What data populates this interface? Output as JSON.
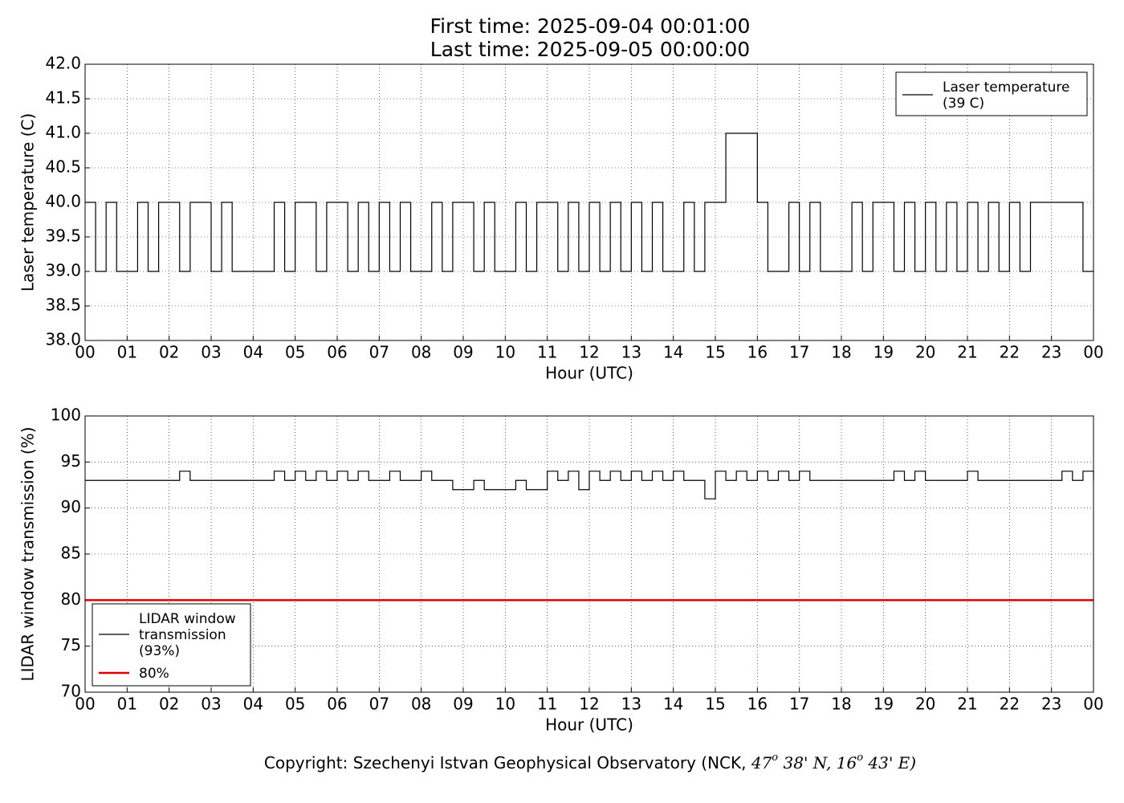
{
  "title": [
    "First time: 2025-09-04 00:01:00",
    "Last time: 2025-09-05 00:00:00"
  ],
  "chart_data": [
    {
      "type": "line",
      "drawstyle": "steps",
      "xlabel": "Hour (UTC)",
      "ylabel": "Laser temperature (C)",
      "grid": true,
      "legend": "upper right",
      "xlim": [
        0,
        24
      ],
      "xticks": [
        {
          "value": 0,
          "label": "00"
        },
        {
          "value": 1,
          "label": "01"
        },
        {
          "value": 2,
          "label": "02"
        },
        {
          "value": 3,
          "label": "03"
        },
        {
          "value": 4,
          "label": "04"
        },
        {
          "value": 5,
          "label": "05"
        },
        {
          "value": 6,
          "label": "06"
        },
        {
          "value": 7,
          "label": "07"
        },
        {
          "value": 8,
          "label": "08"
        },
        {
          "value": 9,
          "label": "09"
        },
        {
          "value": 10,
          "label": "10"
        },
        {
          "value": 11,
          "label": "11"
        },
        {
          "value": 12,
          "label": "12"
        },
        {
          "value": 13,
          "label": "13"
        },
        {
          "value": 14,
          "label": "14"
        },
        {
          "value": 15,
          "label": "15"
        },
        {
          "value": 16,
          "label": "16"
        },
        {
          "value": 17,
          "label": "17"
        },
        {
          "value": 18,
          "label": "18"
        },
        {
          "value": 19,
          "label": "19"
        },
        {
          "value": 20,
          "label": "20"
        },
        {
          "value": 21,
          "label": "21"
        },
        {
          "value": 22,
          "label": "22"
        },
        {
          "value": 23,
          "label": "23"
        },
        {
          "value": 24,
          "label": "00"
        }
      ],
      "ylim": [
        38,
        42
      ],
      "yticks": [
        {
          "value": 38,
          "label": "38.0"
        },
        {
          "value": 38.5,
          "label": "38.5"
        },
        {
          "value": 39,
          "label": "39.0"
        },
        {
          "value": 39.5,
          "label": "39.5"
        },
        {
          "value": 40,
          "label": "40.0"
        },
        {
          "value": 40.5,
          "label": "40.5"
        },
        {
          "value": 41,
          "label": "41.0"
        },
        {
          "value": 41.5,
          "label": "41.5"
        },
        {
          "value": 42,
          "label": "42.0"
        }
      ],
      "x": [
        0,
        0.25,
        0.5,
        0.75,
        1,
        1.25,
        1.5,
        1.75,
        2,
        2.25,
        2.5,
        2.75,
        3,
        3.25,
        3.5,
        3.75,
        4,
        4.25,
        4.5,
        4.75,
        5,
        5.25,
        5.5,
        5.75,
        6,
        6.25,
        6.5,
        6.75,
        7,
        7.25,
        7.5,
        7.75,
        8,
        8.25,
        8.5,
        8.75,
        9,
        9.25,
        9.5,
        9.75,
        10,
        10.25,
        10.5,
        10.75,
        11,
        11.25,
        11.5,
        11.75,
        12,
        12.25,
        12.5,
        12.75,
        13,
        13.25,
        13.5,
        13.75,
        14,
        14.25,
        14.5,
        14.75,
        15,
        15.25,
        15.5,
        15.75,
        16,
        16.25,
        16.5,
        16.75,
        17,
        17.25,
        17.5,
        17.75,
        18,
        18.25,
        18.5,
        18.75,
        19,
        19.25,
        19.5,
        19.75,
        20,
        20.25,
        20.5,
        20.75,
        21,
        21.25,
        21.5,
        21.75,
        22,
        22.25,
        22.5,
        22.75,
        23,
        23.25,
        23.5,
        23.75,
        24
      ],
      "series": [
        {
          "name": "Laser temperature\n(39 C)",
          "color": "#000000",
          "values": [
            40,
            39,
            40,
            39,
            39,
            40,
            39,
            40,
            40,
            39,
            40,
            40,
            39,
            40,
            39,
            39,
            39,
            39,
            40,
            39,
            40,
            40,
            39,
            40,
            40,
            39,
            40,
            39,
            40,
            39,
            40,
            39,
            39,
            40,
            39,
            40,
            40,
            39,
            40,
            39,
            39,
            40,
            39,
            40,
            40,
            39,
            40,
            39,
            40,
            39,
            40,
            39,
            40,
            39,
            40,
            39,
            39,
            40,
            39,
            40,
            40,
            41,
            41,
            41,
            40,
            39,
            39,
            40,
            39,
            40,
            39,
            39,
            39,
            40,
            39,
            40,
            40,
            39,
            40,
            39,
            40,
            39,
            40,
            39,
            40,
            39,
            40,
            39,
            40,
            39,
            40,
            40,
            40,
            40,
            40,
            39,
            39
          ]
        }
      ]
    },
    {
      "type": "line",
      "drawstyle": "steps",
      "xlabel": "Hour (UTC)",
      "ylabel": "LIDAR window transmission (%)",
      "grid": true,
      "legend": "lower left",
      "xlim": [
        0,
        24
      ],
      "xticks": [
        {
          "value": 0,
          "label": "00"
        },
        {
          "value": 1,
          "label": "01"
        },
        {
          "value": 2,
          "label": "02"
        },
        {
          "value": 3,
          "label": "03"
        },
        {
          "value": 4,
          "label": "04"
        },
        {
          "value": 5,
          "label": "05"
        },
        {
          "value": 6,
          "label": "06"
        },
        {
          "value": 7,
          "label": "07"
        },
        {
          "value": 8,
          "label": "08"
        },
        {
          "value": 9,
          "label": "09"
        },
        {
          "value": 10,
          "label": "10"
        },
        {
          "value": 11,
          "label": "11"
        },
        {
          "value": 12,
          "label": "12"
        },
        {
          "value": 13,
          "label": "13"
        },
        {
          "value": 14,
          "label": "14"
        },
        {
          "value": 15,
          "label": "15"
        },
        {
          "value": 16,
          "label": "16"
        },
        {
          "value": 17,
          "label": "17"
        },
        {
          "value": 18,
          "label": "18"
        },
        {
          "value": 19,
          "label": "19"
        },
        {
          "value": 20,
          "label": "20"
        },
        {
          "value": 21,
          "label": "21"
        },
        {
          "value": 22,
          "label": "22"
        },
        {
          "value": 23,
          "label": "23"
        },
        {
          "value": 24,
          "label": "00"
        }
      ],
      "ylim": [
        70,
        100
      ],
      "yticks": [
        70,
        75,
        80,
        85,
        90,
        95,
        100
      ],
      "x": [
        0,
        0.25,
        0.5,
        0.75,
        1,
        1.25,
        1.5,
        1.75,
        2,
        2.25,
        2.5,
        2.75,
        3,
        3.25,
        3.5,
        3.75,
        4,
        4.25,
        4.5,
        4.75,
        5,
        5.25,
        5.5,
        5.75,
        6,
        6.25,
        6.5,
        6.75,
        7,
        7.25,
        7.5,
        7.75,
        8,
        8.25,
        8.5,
        8.75,
        9,
        9.25,
        9.5,
        9.75,
        10,
        10.25,
        10.5,
        10.75,
        11,
        11.25,
        11.5,
        11.75,
        12,
        12.25,
        12.5,
        12.75,
        13,
        13.25,
        13.5,
        13.75,
        14,
        14.25,
        14.5,
        14.75,
        15,
        15.25,
        15.5,
        15.75,
        16,
        16.25,
        16.5,
        16.75,
        17,
        17.25,
        17.5,
        17.75,
        18,
        18.25,
        18.5,
        18.75,
        19,
        19.25,
        19.5,
        19.75,
        20,
        20.25,
        20.5,
        20.75,
        21,
        21.25,
        21.5,
        21.75,
        22,
        22.25,
        22.5,
        22.75,
        23,
        23.25,
        23.5,
        23.75,
        24
      ],
      "series": [
        {
          "name": "LIDAR window\ntransmission\n(93%)",
          "color": "#000000",
          "values": [
            93,
            93,
            93,
            93,
            93,
            93,
            93,
            93,
            93,
            94,
            93,
            93,
            93,
            93,
            93,
            93,
            93,
            93,
            94,
            93,
            94,
            93,
            94,
            93,
            94,
            93,
            94,
            93,
            93,
            94,
            93,
            93,
            94,
            93,
            93,
            92,
            92,
            93,
            92,
            92,
            92,
            93,
            92,
            92,
            94,
            93,
            94,
            92,
            94,
            93,
            94,
            93,
            94,
            93,
            94,
            93,
            94,
            93,
            93,
            91,
            94,
            93,
            94,
            93,
            94,
            93,
            94,
            93,
            94,
            93,
            93,
            93,
            93,
            93,
            93,
            93,
            93,
            94,
            93,
            94,
            93,
            93,
            93,
            93,
            94,
            93,
            93,
            93,
            93,
            93,
            93,
            93,
            93,
            94,
            93,
            94,
            93
          ]
        }
      ],
      "hlines": [
        {
          "name": "80%",
          "value": 80,
          "color": "#e00000"
        }
      ]
    }
  ],
  "footer": [
    "Copyright: Szechenyi Istvan Geophysical Observatory (NCK, ",
    "47",
    "o",
    " 38' N, ",
    "16",
    "o",
    " 43' E)"
  ]
}
